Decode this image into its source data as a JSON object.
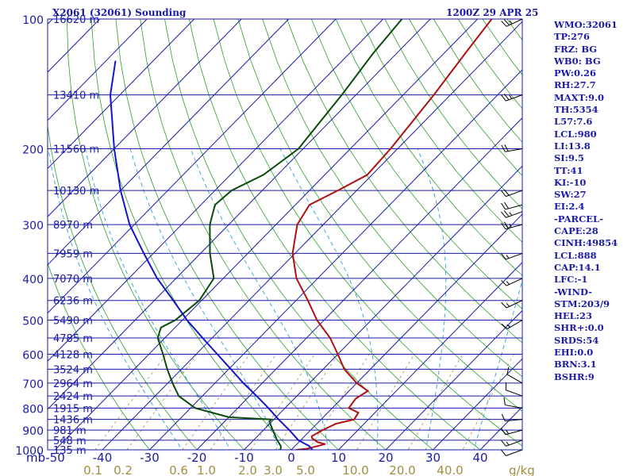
{
  "header": {
    "station": "X2061 (32061) Sounding",
    "time": "1200Z 29 APR 25"
  },
  "indices": [
    "WMO:32061",
    "TP:276",
    "FRZ: BG",
    "WB0: BG",
    "PW:0.26",
    "RH:27.7",
    "MAXT:9.0",
    "TH:5354",
    "L57:7.6",
    "LCL:980",
    "LI:13.8",
    "SI:9.5",
    "TT:41",
    "KI:-10",
    "SW:27",
    "EI:2.4",
    "-PARCEL-",
    "CAPE:28",
    "CINH:49854",
    "LCL:888",
    "CAP:14.1",
    "LFC:-1",
    "-WIND-",
    "STM:203/9",
    "HEL:23",
    "SHR+:0.0",
    "SRDS:54",
    "EHI:0.0",
    "BRN:3.1",
    "BSHR:9"
  ],
  "colors": {
    "isobar": "#1a1aa8",
    "isotherm": "#1a1aa8",
    "dry_adiabat": "#2aa02a",
    "moist_adiabat": "#2a9fd8",
    "mixing_ratio": "#a09040",
    "temperature": "#b01010",
    "dewpoint": "#0a4a0a",
    "parcel": "#1414c8",
    "wind": "#000000"
  },
  "chart_data": {
    "type": "skew-t",
    "pressure_unit": "mb",
    "temperature_unit": "°C",
    "mixing_ratio_unit": "g/kg",
    "pressure_range": [
      1000,
      100
    ],
    "temperature_range": [
      -50,
      50
    ],
    "grid": true,
    "pressure_ticks": [
      {
        "p": 100,
        "label": "100"
      },
      {
        "p": 200,
        "label": "200"
      },
      {
        "p": 300,
        "label": "300"
      },
      {
        "p": 400,
        "label": "400"
      },
      {
        "p": 500,
        "label": "500"
      },
      {
        "p": 600,
        "label": "600"
      },
      {
        "p": 700,
        "label": "700"
      },
      {
        "p": 800,
        "label": "800"
      },
      {
        "p": 900,
        "label": "900"
      },
      {
        "p": 1000,
        "label": "1000"
      }
    ],
    "temperature_ticks": [
      {
        "t": -50,
        "label": "-50"
      },
      {
        "t": -40,
        "label": "-40"
      },
      {
        "t": -30,
        "label": "-30"
      },
      {
        "t": -20,
        "label": "-20"
      },
      {
        "t": -10,
        "label": "-10"
      },
      {
        "t": 0,
        "label": "0"
      },
      {
        "t": 10,
        "label": "10"
      },
      {
        "t": 20,
        "label": "20"
      },
      {
        "t": 30,
        "label": "30"
      },
      {
        "t": 40,
        "label": "40"
      }
    ],
    "mixing_ratio_ticks": [
      {
        "w": 0.1,
        "label": "0.1"
      },
      {
        "w": 0.2,
        "label": "0.2"
      },
      {
        "w": 0.6,
        "label": "0.6"
      },
      {
        "w": 1.0,
        "label": "1.0"
      },
      {
        "w": 2.0,
        "label": "2.0"
      },
      {
        "w": 3.0,
        "label": "3.0"
      },
      {
        "w": 5.0,
        "label": "5.0"
      },
      {
        "w": 10.0,
        "label": "10.0"
      },
      {
        "w": 20.0,
        "label": "20.0"
      },
      {
        "w": 40.0,
        "label": "40.0"
      }
    ],
    "height_levels": [
      {
        "p": 100,
        "label": "16620 m"
      },
      {
        "p": 150,
        "label": "13410 m"
      },
      {
        "p": 200,
        "label": "11560 m"
      },
      {
        "p": 250,
        "label": "10130 m"
      },
      {
        "p": 300,
        "label": "8970 m"
      },
      {
        "p": 350,
        "label": "7959 m"
      },
      {
        "p": 400,
        "label": "7070 m"
      },
      {
        "p": 450,
        "label": "6236 m"
      },
      {
        "p": 500,
        "label": "5490 m"
      },
      {
        "p": 550,
        "label": "4785 m"
      },
      {
        "p": 600,
        "label": "4128 m"
      },
      {
        "p": 650,
        "label": "3524 m"
      },
      {
        "p": 700,
        "label": "2964 m"
      },
      {
        "p": 750,
        "label": "2424 m"
      },
      {
        "p": 800,
        "label": "1915 m"
      },
      {
        "p": 850,
        "label": "1436 m"
      },
      {
        "p": 900,
        "label": "981 m"
      },
      {
        "p": 950,
        "label": "548 m"
      },
      {
        "p": 1000,
        "label": "135 m"
      }
    ],
    "series": [
      {
        "name": "temperature",
        "points": [
          {
            "p": 1007,
            "t": 5.0
          },
          {
            "p": 1000,
            "t": 1.0
          },
          {
            "p": 995,
            "t": 3.0
          },
          {
            "p": 970,
            "t": 6.0
          },
          {
            "p": 960,
            "t": 4.0
          },
          {
            "p": 940,
            "t": 2.0
          },
          {
            "p": 930,
            "t": 1.5
          },
          {
            "p": 900,
            "t": 2.5
          },
          {
            "p": 870,
            "t": 4.0
          },
          {
            "p": 850,
            "t": 7.0
          },
          {
            "p": 820,
            "t": 6.5
          },
          {
            "p": 800,
            "t": 3.5
          },
          {
            "p": 760,
            "t": 3.0
          },
          {
            "p": 730,
            "t": 4.0
          },
          {
            "p": 700,
            "t": 0.0
          },
          {
            "p": 650,
            "t": -5.5
          },
          {
            "p": 600,
            "t": -10.0
          },
          {
            "p": 550,
            "t": -15.0
          },
          {
            "p": 500,
            "t": -21.5
          },
          {
            "p": 450,
            "t": -27.5
          },
          {
            "p": 400,
            "t": -34.5
          },
          {
            "p": 350,
            "t": -40.5
          },
          {
            "p": 300,
            "t": -45.5
          },
          {
            "p": 270,
            "t": -47.0
          },
          {
            "p": 250,
            "t": -44.0
          },
          {
            "p": 230,
            "t": -41.0
          },
          {
            "p": 200,
            "t": -41.5
          },
          {
            "p": 150,
            "t": -43.5
          },
          {
            "p": 120,
            "t": -45.5
          },
          {
            "p": 100,
            "t": -47.0
          }
        ]
      },
      {
        "name": "dewpoint",
        "points": [
          {
            "p": 1007,
            "t": -2.0
          },
          {
            "p": 980,
            "t": -3.0
          },
          {
            "p": 950,
            "t": -5.0
          },
          {
            "p": 900,
            "t": -8.0
          },
          {
            "p": 860,
            "t": -10.5
          },
          {
            "p": 850,
            "t": -10.5
          },
          {
            "p": 840,
            "t": -20.0
          },
          {
            "p": 800,
            "t": -29.0
          },
          {
            "p": 750,
            "t": -35.0
          },
          {
            "p": 700,
            "t": -39.0
          },
          {
            "p": 650,
            "t": -43.0
          },
          {
            "p": 600,
            "t": -47.0
          },
          {
            "p": 550,
            "t": -51.5
          },
          {
            "p": 520,
            "t": -53.0
          },
          {
            "p": 500,
            "t": -51.5
          },
          {
            "p": 450,
            "t": -50.5
          },
          {
            "p": 400,
            "t": -52.0
          },
          {
            "p": 350,
            "t": -58.0
          },
          {
            "p": 300,
            "t": -64.0
          },
          {
            "p": 270,
            "t": -67.0
          },
          {
            "p": 250,
            "t": -66.5
          },
          {
            "p": 230,
            "t": -63.0
          },
          {
            "p": 200,
            "t": -61.0
          },
          {
            "p": 150,
            "t": -63.0
          },
          {
            "p": 120,
            "t": -65.0
          },
          {
            "p": 100,
            "t": -66.0
          }
        ]
      },
      {
        "name": "parcel",
        "points": [
          {
            "p": 1007,
            "t": 5.0
          },
          {
            "p": 980,
            "t": 3.0
          },
          {
            "p": 950,
            "t": -0.5
          },
          {
            "p": 900,
            "t": -4.5
          },
          {
            "p": 850,
            "t": -9.0
          },
          {
            "p": 800,
            "t": -13.5
          },
          {
            "p": 750,
            "t": -18.5
          },
          {
            "p": 700,
            "t": -24.0
          },
          {
            "p": 650,
            "t": -29.5
          },
          {
            "p": 600,
            "t": -35.5
          },
          {
            "p": 550,
            "t": -42.0
          },
          {
            "p": 500,
            "t": -49.0
          },
          {
            "p": 450,
            "t": -56.0
          },
          {
            "p": 400,
            "t": -64.0
          },
          {
            "p": 350,
            "t": -72.0
          },
          {
            "p": 300,
            "t": -81.0
          },
          {
            "p": 250,
            "t": -90.0
          },
          {
            "p": 200,
            "t": -100.0
          },
          {
            "p": 150,
            "t": -112.0
          },
          {
            "p": 125,
            "t": -118.0
          }
        ]
      }
    ],
    "wind_barbs": [
      {
        "p": 1000,
        "dir": 250,
        "kt": 10
      },
      {
        "p": 950,
        "dir": 250,
        "kt": 15
      },
      {
        "p": 900,
        "dir": 255,
        "kt": 15
      },
      {
        "p": 850,
        "dir": 265,
        "kt": 10
      },
      {
        "p": 800,
        "dir": 280,
        "kt": 10
      },
      {
        "p": 750,
        "dir": 290,
        "kt": 10
      },
      {
        "p": 700,
        "dir": 300,
        "kt": 10
      },
      {
        "p": 500,
        "dir": 240,
        "kt": 15
      },
      {
        "p": 450,
        "dir": 245,
        "kt": 15
      },
      {
        "p": 400,
        "dir": 245,
        "kt": 15
      },
      {
        "p": 350,
        "dir": 250,
        "kt": 15
      },
      {
        "p": 300,
        "dir": 255,
        "kt": 25
      },
      {
        "p": 280,
        "dir": 250,
        "kt": 25
      },
      {
        "p": 270,
        "dir": 255,
        "kt": 20
      },
      {
        "p": 250,
        "dir": 250,
        "kt": 20
      },
      {
        "p": 200,
        "dir": 260,
        "kt": 20
      },
      {
        "p": 150,
        "dir": 250,
        "kt": 25
      },
      {
        "p": 100,
        "dir": 245,
        "kt": 25
      }
    ]
  }
}
